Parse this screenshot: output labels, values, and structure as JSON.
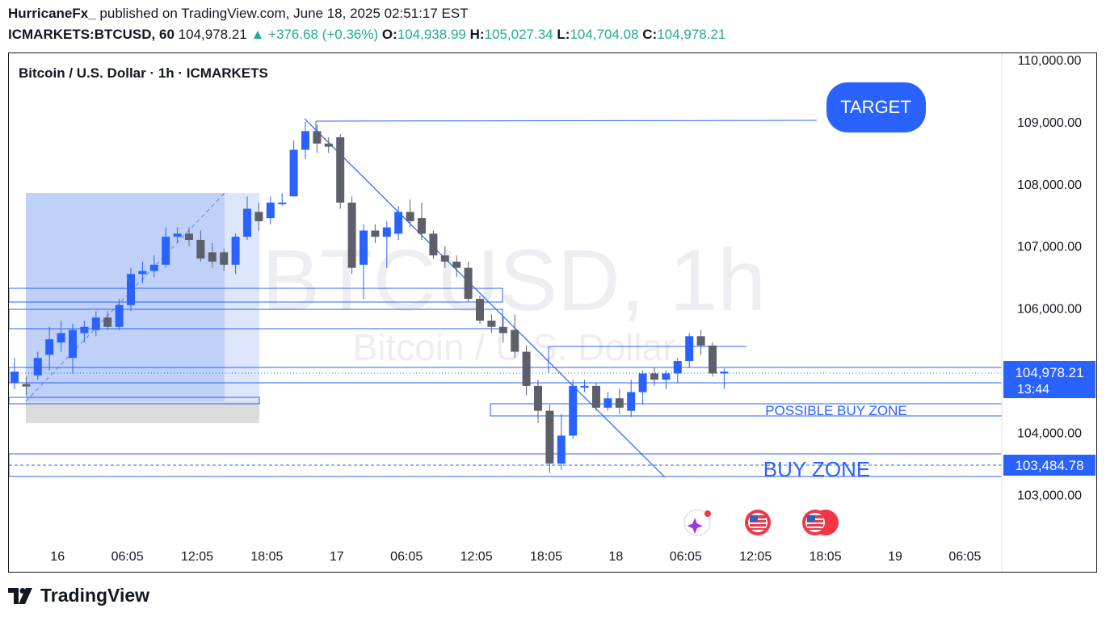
{
  "header": {
    "author": "HurricaneFx_",
    "published": "published on TradingView.com, June 18, 2025 02:51:17 EST",
    "symbol": "ICMARKETS:BTCUSD, 60",
    "last": "104,978.21",
    "change": "+376.68 (+0.36%)",
    "o_label": "O:",
    "o_value": "104,938.99",
    "h_label": "H:",
    "h_value": "105,027.34",
    "l_label": "L:",
    "l_value": "104,704.08",
    "c_label": "C:",
    "c_value": "104,978.21"
  },
  "chart_title": "Bitcoin / U.S. Dollar · 1h · ICMARKETS",
  "watermark": {
    "line1": "BTCUSD, 1h",
    "line2": "Bitcoin / U.S. Dollar"
  },
  "footer": {
    "brand": "TradingView"
  },
  "colors": {
    "up": "#2962ff",
    "down": "#5d606b",
    "accent": "#2962ff",
    "text": "#131722"
  },
  "chart_data": {
    "type": "candlestick",
    "title": "Bitcoin / U.S. Dollar · 1h · ICMARKETS",
    "ylim": [
      102500,
      110050
    ],
    "y_ticks": [
      110000,
      109000,
      108000,
      107000,
      106000,
      104000,
      103000
    ],
    "y_tick_labels": [
      "110,000.00",
      "109,000.00",
      "108,000.00",
      "107,000.00",
      "106,000.00",
      "104,000.00",
      "103,000.00"
    ],
    "x_tick_labels": [
      "16",
      "06:05",
      "12:05",
      "18:05",
      "17",
      "06:05",
      "12:05",
      "18:05",
      "18",
      "06:05",
      "12:05",
      "18:05",
      "19",
      "06:05"
    ],
    "x_tick_index": [
      3,
      9,
      15,
      21,
      27,
      33,
      39,
      45,
      51,
      57,
      63,
      69,
      75,
      81
    ],
    "candles": [
      [
        104800,
        104980,
        104700,
        105200
      ],
      [
        104780,
        104740,
        104600,
        104900
      ],
      [
        104920,
        105200,
        104850,
        105300
      ],
      [
        105250,
        105500,
        105000,
        105700
      ],
      [
        105450,
        105600,
        105300,
        105800
      ],
      [
        105200,
        105650,
        104950,
        105750
      ],
      [
        105600,
        105700,
        105450,
        105800
      ],
      [
        105650,
        105850,
        105550,
        105950
      ],
      [
        105850,
        105700,
        105650,
        105950
      ],
      [
        105700,
        106050,
        105650,
        106150
      ],
      [
        106050,
        106550,
        105950,
        106650
      ],
      [
        106550,
        106600,
        106400,
        106750
      ],
      [
        106600,
        106700,
        106500,
        106850
      ],
      [
        106700,
        107150,
        106650,
        107300
      ],
      [
        107150,
        107200,
        107050,
        107300
      ],
      [
        107200,
        107100,
        107000,
        107300
      ],
      [
        107100,
        106800,
        106750,
        107250
      ],
      [
        106900,
        106750,
        106650,
        107050
      ],
      [
        106900,
        106700,
        106600,
        106950
      ],
      [
        106700,
        107150,
        106550,
        107200
      ],
      [
        107150,
        107600,
        107100,
        107800
      ],
      [
        107550,
        107400,
        107250,
        107700
      ],
      [
        107450,
        107700,
        107350,
        107800
      ],
      [
        107700,
        107700,
        107650,
        107850
      ],
      [
        107800,
        108550,
        107800,
        108700
      ],
      [
        108550,
        108850,
        108400,
        109000
      ],
      [
        108850,
        108650,
        108500,
        108950
      ],
      [
        108650,
        108600,
        108500,
        108750
      ],
      [
        108750,
        107700,
        107600,
        108800
      ],
      [
        107700,
        106650,
        106550,
        107800
      ],
      [
        106700,
        107250,
        106150,
        107350
      ],
      [
        107250,
        107150,
        107050,
        107350
      ],
      [
        107150,
        107300,
        106650,
        107400
      ],
      [
        107200,
        107550,
        107100,
        107650
      ],
      [
        107550,
        107400,
        107300,
        107750
      ],
      [
        107450,
        107200,
        107100,
        107700
      ],
      [
        107200,
        106850,
        106800,
        107250
      ],
      [
        106850,
        106750,
        106650,
        107000
      ],
      [
        106750,
        106650,
        106500,
        106850
      ],
      [
        106650,
        106150,
        106100,
        106750
      ],
      [
        106150,
        105800,
        105750,
        106200
      ],
      [
        105800,
        105700,
        105600,
        105900
      ],
      [
        105700,
        105600,
        105450,
        105850
      ],
      [
        105650,
        105300,
        105200,
        105900
      ],
      [
        105300,
        104750,
        104600,
        105400
      ],
      [
        104750,
        104350,
        104150,
        104850
      ],
      [
        104350,
        103500,
        103350,
        104450
      ],
      [
        103500,
        103950,
        103400,
        104300
      ],
      [
        103950,
        104750,
        103900,
        104850
      ],
      [
        104750,
        104750,
        104650,
        104850
      ],
      [
        104750,
        104400,
        104350,
        104800
      ],
      [
        104400,
        104550,
        104350,
        104650
      ],
      [
        104550,
        104400,
        104300,
        104700
      ],
      [
        104350,
        104650,
        104250,
        104850
      ],
      [
        104650,
        104950,
        104450,
        105000
      ],
      [
        104950,
        104850,
        104750,
        105050
      ],
      [
        104850,
        104950,
        104700,
        105000
      ],
      [
        104950,
        105150,
        104800,
        105200
      ],
      [
        105150,
        105550,
        105050,
        105600
      ],
      [
        105550,
        105400,
        105250,
        105650
      ],
      [
        105400,
        104950,
        104900,
        105450
      ],
      [
        104950,
        104980,
        104700,
        105030
      ]
    ]
  },
  "annotations": {
    "target_label": "TARGET",
    "possible_buy_zone": "POSSIBLE BUY ZONE",
    "buy_zone": "BUY ZONE"
  },
  "price_labels": {
    "current_price": "104,978.21",
    "countdown": "13:44",
    "buy_zone_price": "103,484.78"
  }
}
